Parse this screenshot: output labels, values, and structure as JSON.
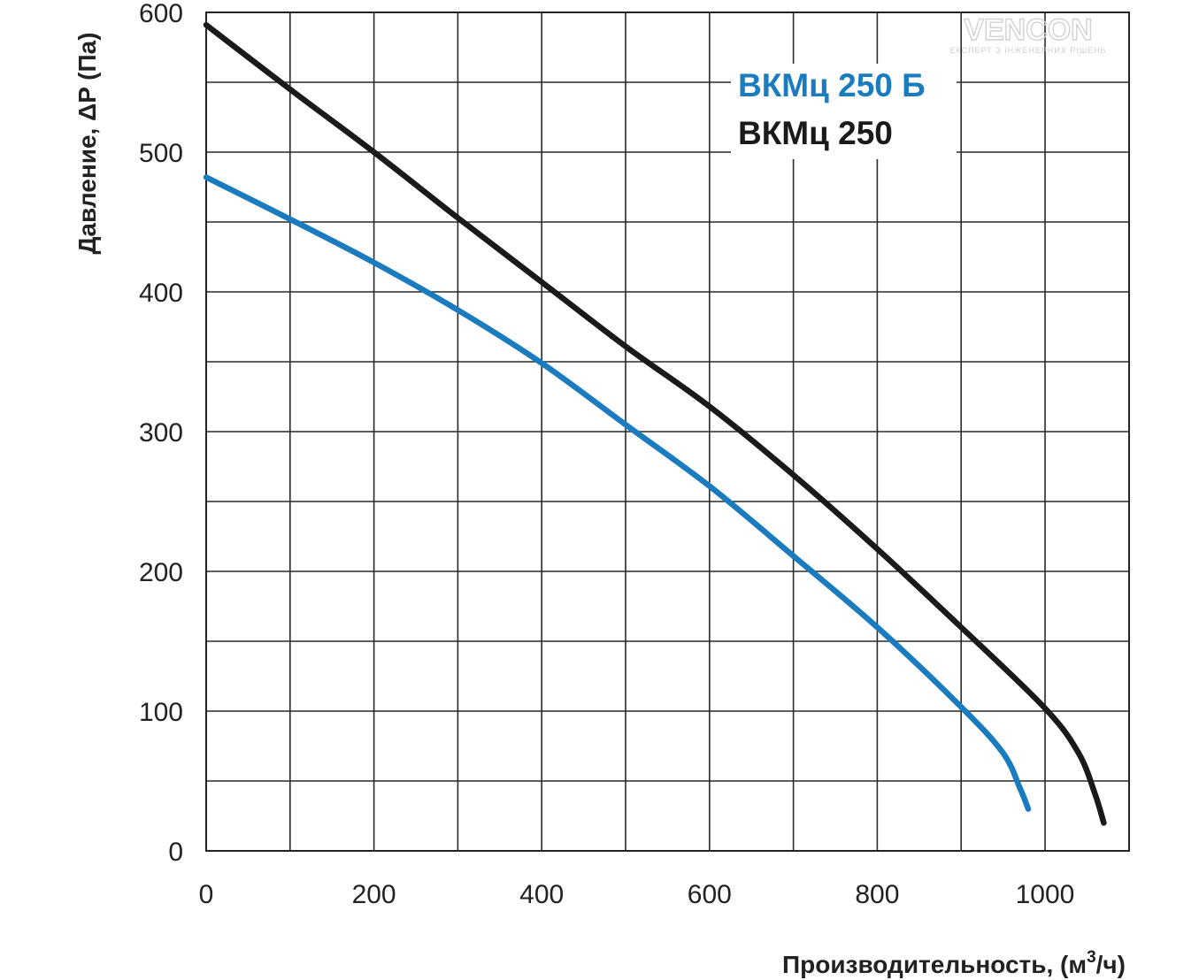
{
  "watermark": {
    "brand": "VENCON",
    "tagline": "ЕКСПЕРТ З ІНЖЕНЕРНИХ РІШЕНЬ"
  },
  "chart_data": {
    "type": "line",
    "xlabel": "Производительность, (м³/ч)",
    "xlabel_parts": {
      "main": "Производительность, (м",
      "sup": "3",
      "tail": "/ч)"
    },
    "ylabel": "Давление, ΔP (Па)",
    "xlim": [
      0,
      1100
    ],
    "ylim": [
      0,
      600
    ],
    "x_ticks": [
      0,
      200,
      400,
      600,
      800,
      1000
    ],
    "x_tick_labels": [
      "0",
      "200",
      "400",
      "600",
      "800",
      "1000"
    ],
    "y_ticks": [
      0,
      100,
      200,
      300,
      400,
      500,
      600
    ],
    "y_tick_labels": [
      "0",
      "100",
      "200",
      "300",
      "400",
      "500",
      "600"
    ],
    "grid": true,
    "grid_x_step": 100,
    "grid_y_step": 50,
    "legend_placement": "top-right",
    "series": [
      {
        "name": "ВКМц 250 Б",
        "color": "#1b7bbf",
        "x": [
          0,
          100,
          200,
          300,
          400,
          500,
          600,
          700,
          800,
          900,
          950,
          970,
          980
        ],
        "y": [
          482,
          452,
          421,
          387,
          349,
          305,
          261,
          211,
          160,
          103,
          70,
          45,
          30
        ]
      },
      {
        "name": "ВКМц 250",
        "color": "#1a1a1a",
        "x": [
          0,
          100,
          200,
          300,
          400,
          500,
          600,
          700,
          800,
          900,
          1000,
          1040,
          1060,
          1070
        ],
        "y": [
          591,
          545,
          500,
          453,
          407,
          361,
          318,
          269,
          216,
          160,
          102,
          70,
          40,
          20
        ]
      }
    ]
  }
}
